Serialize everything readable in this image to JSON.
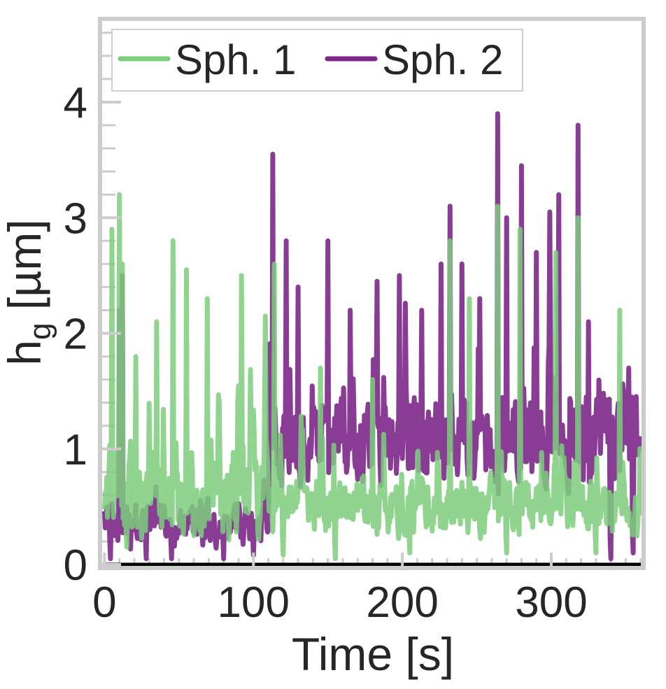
{
  "chart_data": {
    "type": "line",
    "title": "",
    "xlabel": "Time [s]",
    "ylabel_main": "h",
    "ylabel_sub": "g",
    "ylabel_unit": " [µm]",
    "xlim": [
      -3,
      362
    ],
    "ylim": [
      -0.03,
      4.72
    ],
    "xticks": [
      0,
      100,
      200,
      300
    ],
    "yticks": [
      0,
      1,
      2,
      3,
      4
    ],
    "xticks_labels": [
      "0",
      "100",
      "200",
      "300"
    ],
    "yticks_labels": [
      "0",
      "1",
      "2",
      "3",
      "4"
    ],
    "x_minor_step": 10,
    "y_minor_step": 0.2,
    "baseline": 0,
    "grid": false,
    "legend_position": "top-left",
    "sample_step": 0.5,
    "series": [
      {
        "name": "Sph. 1",
        "color": "#7ccd7c",
        "opacity": 0.85,
        "x_start": 0,
        "x_end": 360,
        "regime_change_x": 110,
        "seed": 7,
        "regimes": [
          {
            "until": 110,
            "base": 0.6,
            "spread": 0.55,
            "spike_rate": 0.06,
            "spike_height": 1.3
          },
          {
            "until": 360,
            "base": 0.5,
            "spread": 0.35,
            "spike_rate": 0.05,
            "spike_height": 0.9
          }
        ],
        "peaks": [
          {
            "x": 5,
            "y": 2.9
          },
          {
            "x": 10,
            "y": 3.2
          },
          {
            "x": 12,
            "y": 2.6
          },
          {
            "x": 21,
            "y": 1.8
          },
          {
            "x": 35,
            "y": 2.1
          },
          {
            "x": 46,
            "y": 2.8
          },
          {
            "x": 55,
            "y": 2.55
          },
          {
            "x": 69,
            "y": 2.3
          },
          {
            "x": 92,
            "y": 2.5
          },
          {
            "x": 108,
            "y": 2.15
          },
          {
            "x": 114,
            "y": 2.6
          },
          {
            "x": 145,
            "y": 1.7
          },
          {
            "x": 180,
            "y": 1.6
          },
          {
            "x": 232,
            "y": 2.8
          },
          {
            "x": 245,
            "y": 2.3
          },
          {
            "x": 264,
            "y": 3.1
          },
          {
            "x": 279,
            "y": 2.9
          },
          {
            "x": 303,
            "y": 2.7
          },
          {
            "x": 318,
            "y": 3.0
          },
          {
            "x": 346,
            "y": 2.2
          }
        ],
        "troughs": [
          {
            "x": 15,
            "y": 0.15
          },
          {
            "x": 60,
            "y": 0.25
          },
          {
            "x": 120,
            "y": 0.08
          },
          {
            "x": 155,
            "y": 0.05
          },
          {
            "x": 205,
            "y": 0.1
          },
          {
            "x": 270,
            "y": 0.1
          },
          {
            "x": 330,
            "y": 0.1
          }
        ]
      },
      {
        "name": "Sph. 2",
        "color": "#7b2787",
        "opacity": 0.9,
        "x_start": 0,
        "x_end": 360,
        "regime_change_x": 110,
        "seed": 3,
        "regimes": [
          {
            "until": 110,
            "base": 0.35,
            "spread": 0.3,
            "spike_rate": 0.02,
            "spike_height": 0.6
          },
          {
            "until": 360,
            "base": 1.05,
            "spread": 0.55,
            "spike_rate": 0.06,
            "spike_height": 1.1
          }
        ],
        "peaks": [
          {
            "x": 10,
            "y": 2.2
          },
          {
            "x": 12,
            "y": 2.5
          },
          {
            "x": 113,
            "y": 3.55
          },
          {
            "x": 122,
            "y": 2.8
          },
          {
            "x": 130,
            "y": 2.4
          },
          {
            "x": 150,
            "y": 2.8
          },
          {
            "x": 165,
            "y": 2.2
          },
          {
            "x": 183,
            "y": 2.45
          },
          {
            "x": 198,
            "y": 2.5
          },
          {
            "x": 213,
            "y": 2.2
          },
          {
            "x": 226,
            "y": 2.6
          },
          {
            "x": 232,
            "y": 3.1
          },
          {
            "x": 240,
            "y": 2.6
          },
          {
            "x": 252,
            "y": 2.3
          },
          {
            "x": 264,
            "y": 3.9
          },
          {
            "x": 270,
            "y": 3.0
          },
          {
            "x": 280,
            "y": 3.45
          },
          {
            "x": 290,
            "y": 2.7
          },
          {
            "x": 299,
            "y": 3.05
          },
          {
            "x": 305,
            "y": 3.2
          },
          {
            "x": 318,
            "y": 3.8
          },
          {
            "x": 325,
            "y": 2.1
          },
          {
            "x": 352,
            "y": 1.7
          }
        ],
        "troughs": [
          {
            "x": 4,
            "y": 0.05
          },
          {
            "x": 28,
            "y": 0.05
          },
          {
            "x": 45,
            "y": 0.05
          },
          {
            "x": 80,
            "y": 0.05
          },
          {
            "x": 100,
            "y": 0.08
          },
          {
            "x": 340,
            "y": 0.05
          },
          {
            "x": 355,
            "y": 0.1
          }
        ]
      }
    ]
  }
}
